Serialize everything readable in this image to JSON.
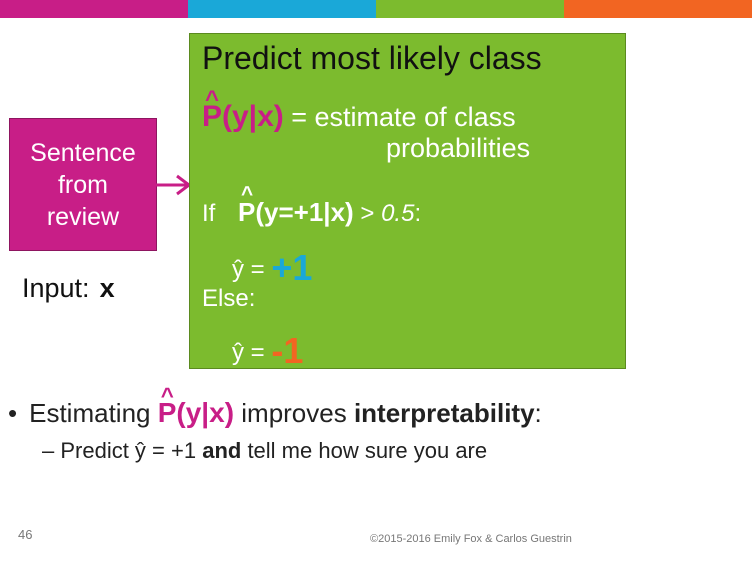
{
  "colors": {
    "bar1": "#c81e87",
    "bar2": "#1aa8d8",
    "bar3": "#7cbb2e",
    "bar4": "#f26522",
    "pink": "#c81e87",
    "green": "#7cbb2e",
    "blue": "#1aa8d8",
    "orange": "#f26522"
  },
  "input_box": {
    "line1": "Sentence",
    "line2": "from",
    "line3": "review"
  },
  "input_label": {
    "text": "Input:",
    "var": "x"
  },
  "green_box": {
    "title": "Predict most likely class",
    "hat": "^",
    "phat_label": "P(y|x)",
    "def_text": " = estimate of class",
    "def_text2": "probabilities",
    "if_word": "If",
    "if_expr": "P(y=+1|x)",
    "if_cond": " > ",
    "threshold": "0.5",
    "colon": ":",
    "yhat_eq": "ŷ = ",
    "pos_val": "+1",
    "else_word": "Else:",
    "neg_val": "-1"
  },
  "bullet": {
    "dot": "•",
    "pre": "Estimating ",
    "phat": "P(y|x)",
    "mid": " improves ",
    "bold": "interpretability",
    "end": ":"
  },
  "sub_bullet": {
    "pre": "– Predict ŷ = +1 ",
    "bold": "and",
    "post": " tell me how sure you are"
  },
  "footer": {
    "page_number": "46",
    "copyright": "©2015-2016 Emily Fox & Carlos Guestrin"
  }
}
